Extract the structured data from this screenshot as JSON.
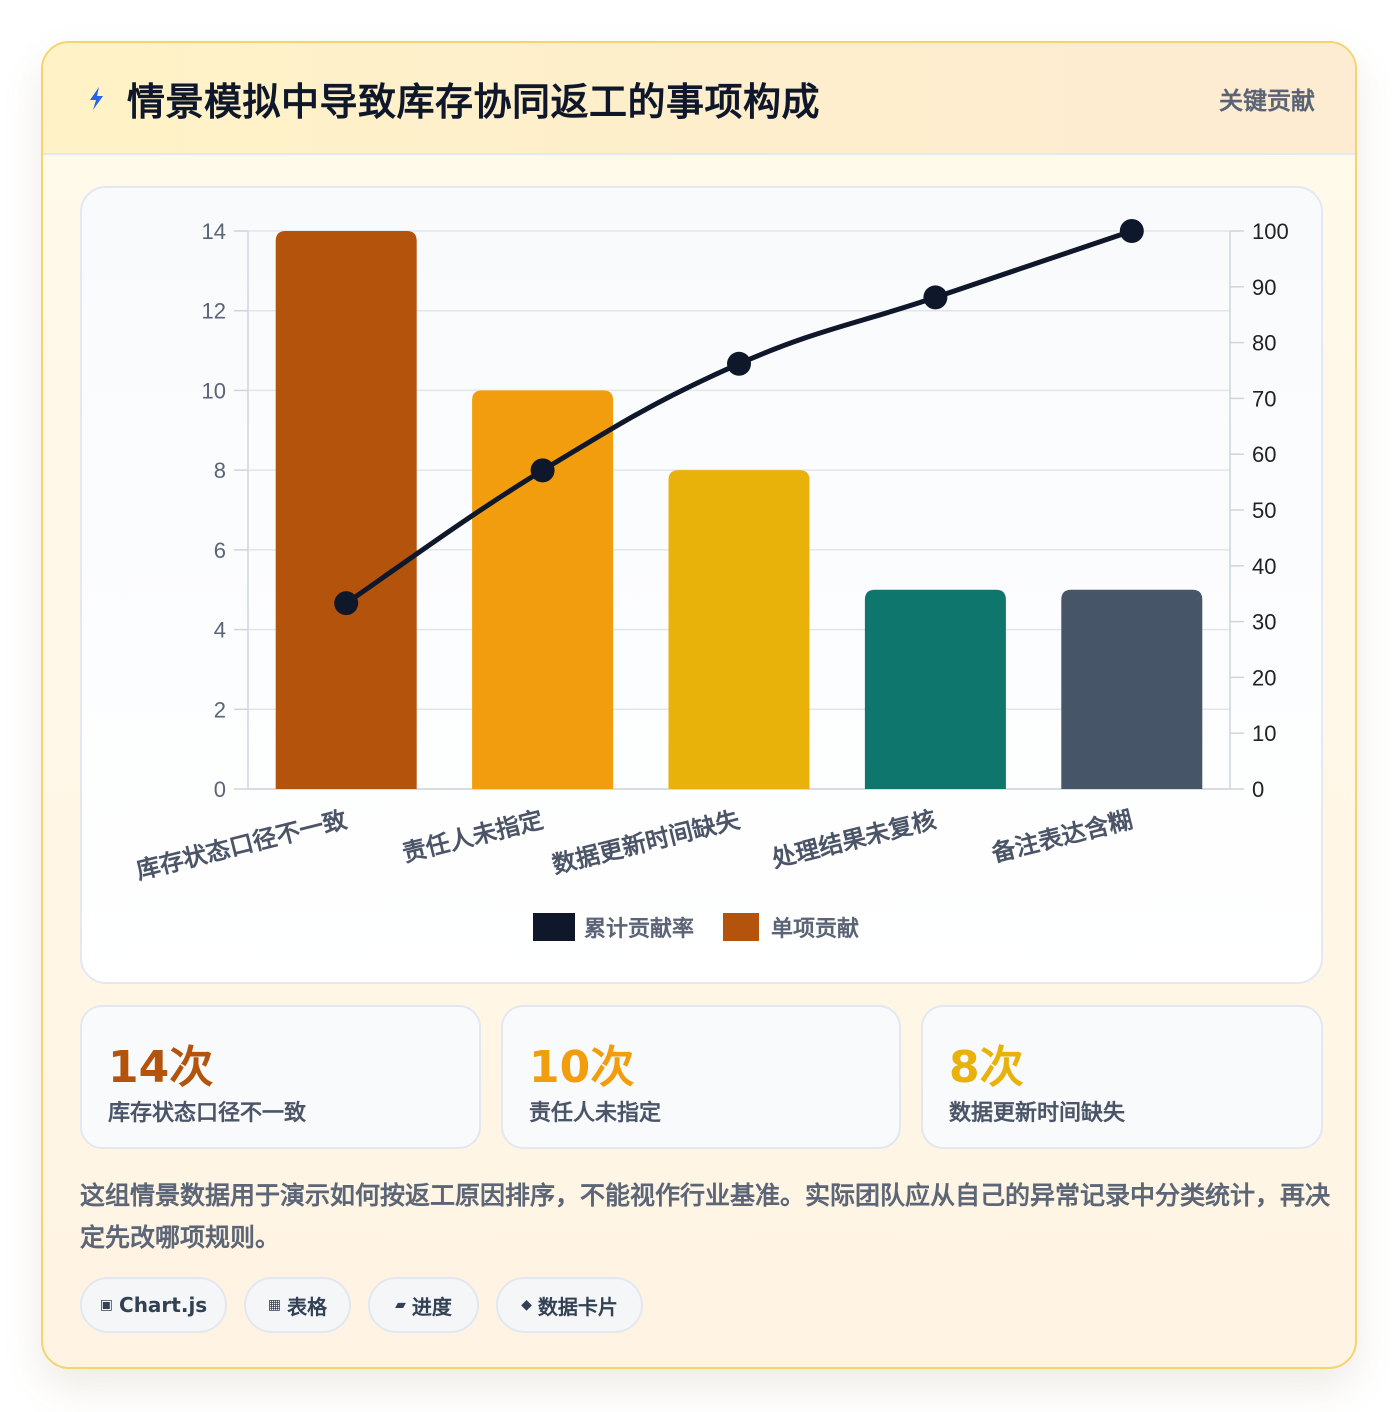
{
  "header": {
    "icon": "lightning-icon",
    "title": "情景模拟中导致库存协同返工的事项构成",
    "badge": "关键贡献"
  },
  "chart_data": {
    "type": "bar",
    "categories": [
      "库存状态口径不一致",
      "责任人未指定",
      "数据更新时间缺失",
      "处理结果未复核",
      "备注表达含糊"
    ],
    "series": [
      {
        "name": "单项贡献",
        "type": "bar",
        "axis": "left",
        "values": [
          14,
          10,
          8,
          5,
          5
        ],
        "colors": [
          "#b4530c",
          "#f29d0e",
          "#e8b20b",
          "#0f766e",
          "#475569"
        ]
      },
      {
        "name": "累计贡献率",
        "type": "line",
        "axis": "right",
        "values": [
          33.3,
          57.1,
          76.2,
          88.1,
          100
        ],
        "color": "#0f172a"
      }
    ],
    "y_left": {
      "ticks": [
        "0",
        "2",
        "4",
        "6",
        "8",
        "10",
        "12",
        "14"
      ],
      "ylim": [
        0,
        14
      ]
    },
    "y_right": {
      "ticks": [
        "0",
        "10",
        "20",
        "30",
        "40",
        "50",
        "60",
        "70",
        "80",
        "90",
        "100"
      ],
      "ylim": [
        0,
        100
      ]
    },
    "legend": [
      {
        "label": "累计贡献率",
        "color": "#0f172a"
      },
      {
        "label": "单项贡献",
        "color": "#b4530c"
      }
    ],
    "legend_position": "bottom",
    "grid": true
  },
  "stats": [
    {
      "value": "14次",
      "label": "库存状态口径不一致",
      "color": "#b4530c"
    },
    {
      "value": "10次",
      "label": "责任人未指定",
      "color": "#f29d0e"
    },
    {
      "value": "8次",
      "label": "数据更新时间缺失",
      "color": "#e8b20b"
    }
  ],
  "note": "这组情景数据用于演示如何按返工原因排序，不能视作行业基准。实际团队应从自己的异常记录中分类统计，再决定先改哪项规则。",
  "tags": [
    {
      "icon": "▣",
      "label": "Chart.js"
    },
    {
      "icon": "▦",
      "label": "表格"
    },
    {
      "icon": "▰",
      "label": "进度"
    },
    {
      "icon": "◆",
      "label": "数据卡片"
    }
  ]
}
